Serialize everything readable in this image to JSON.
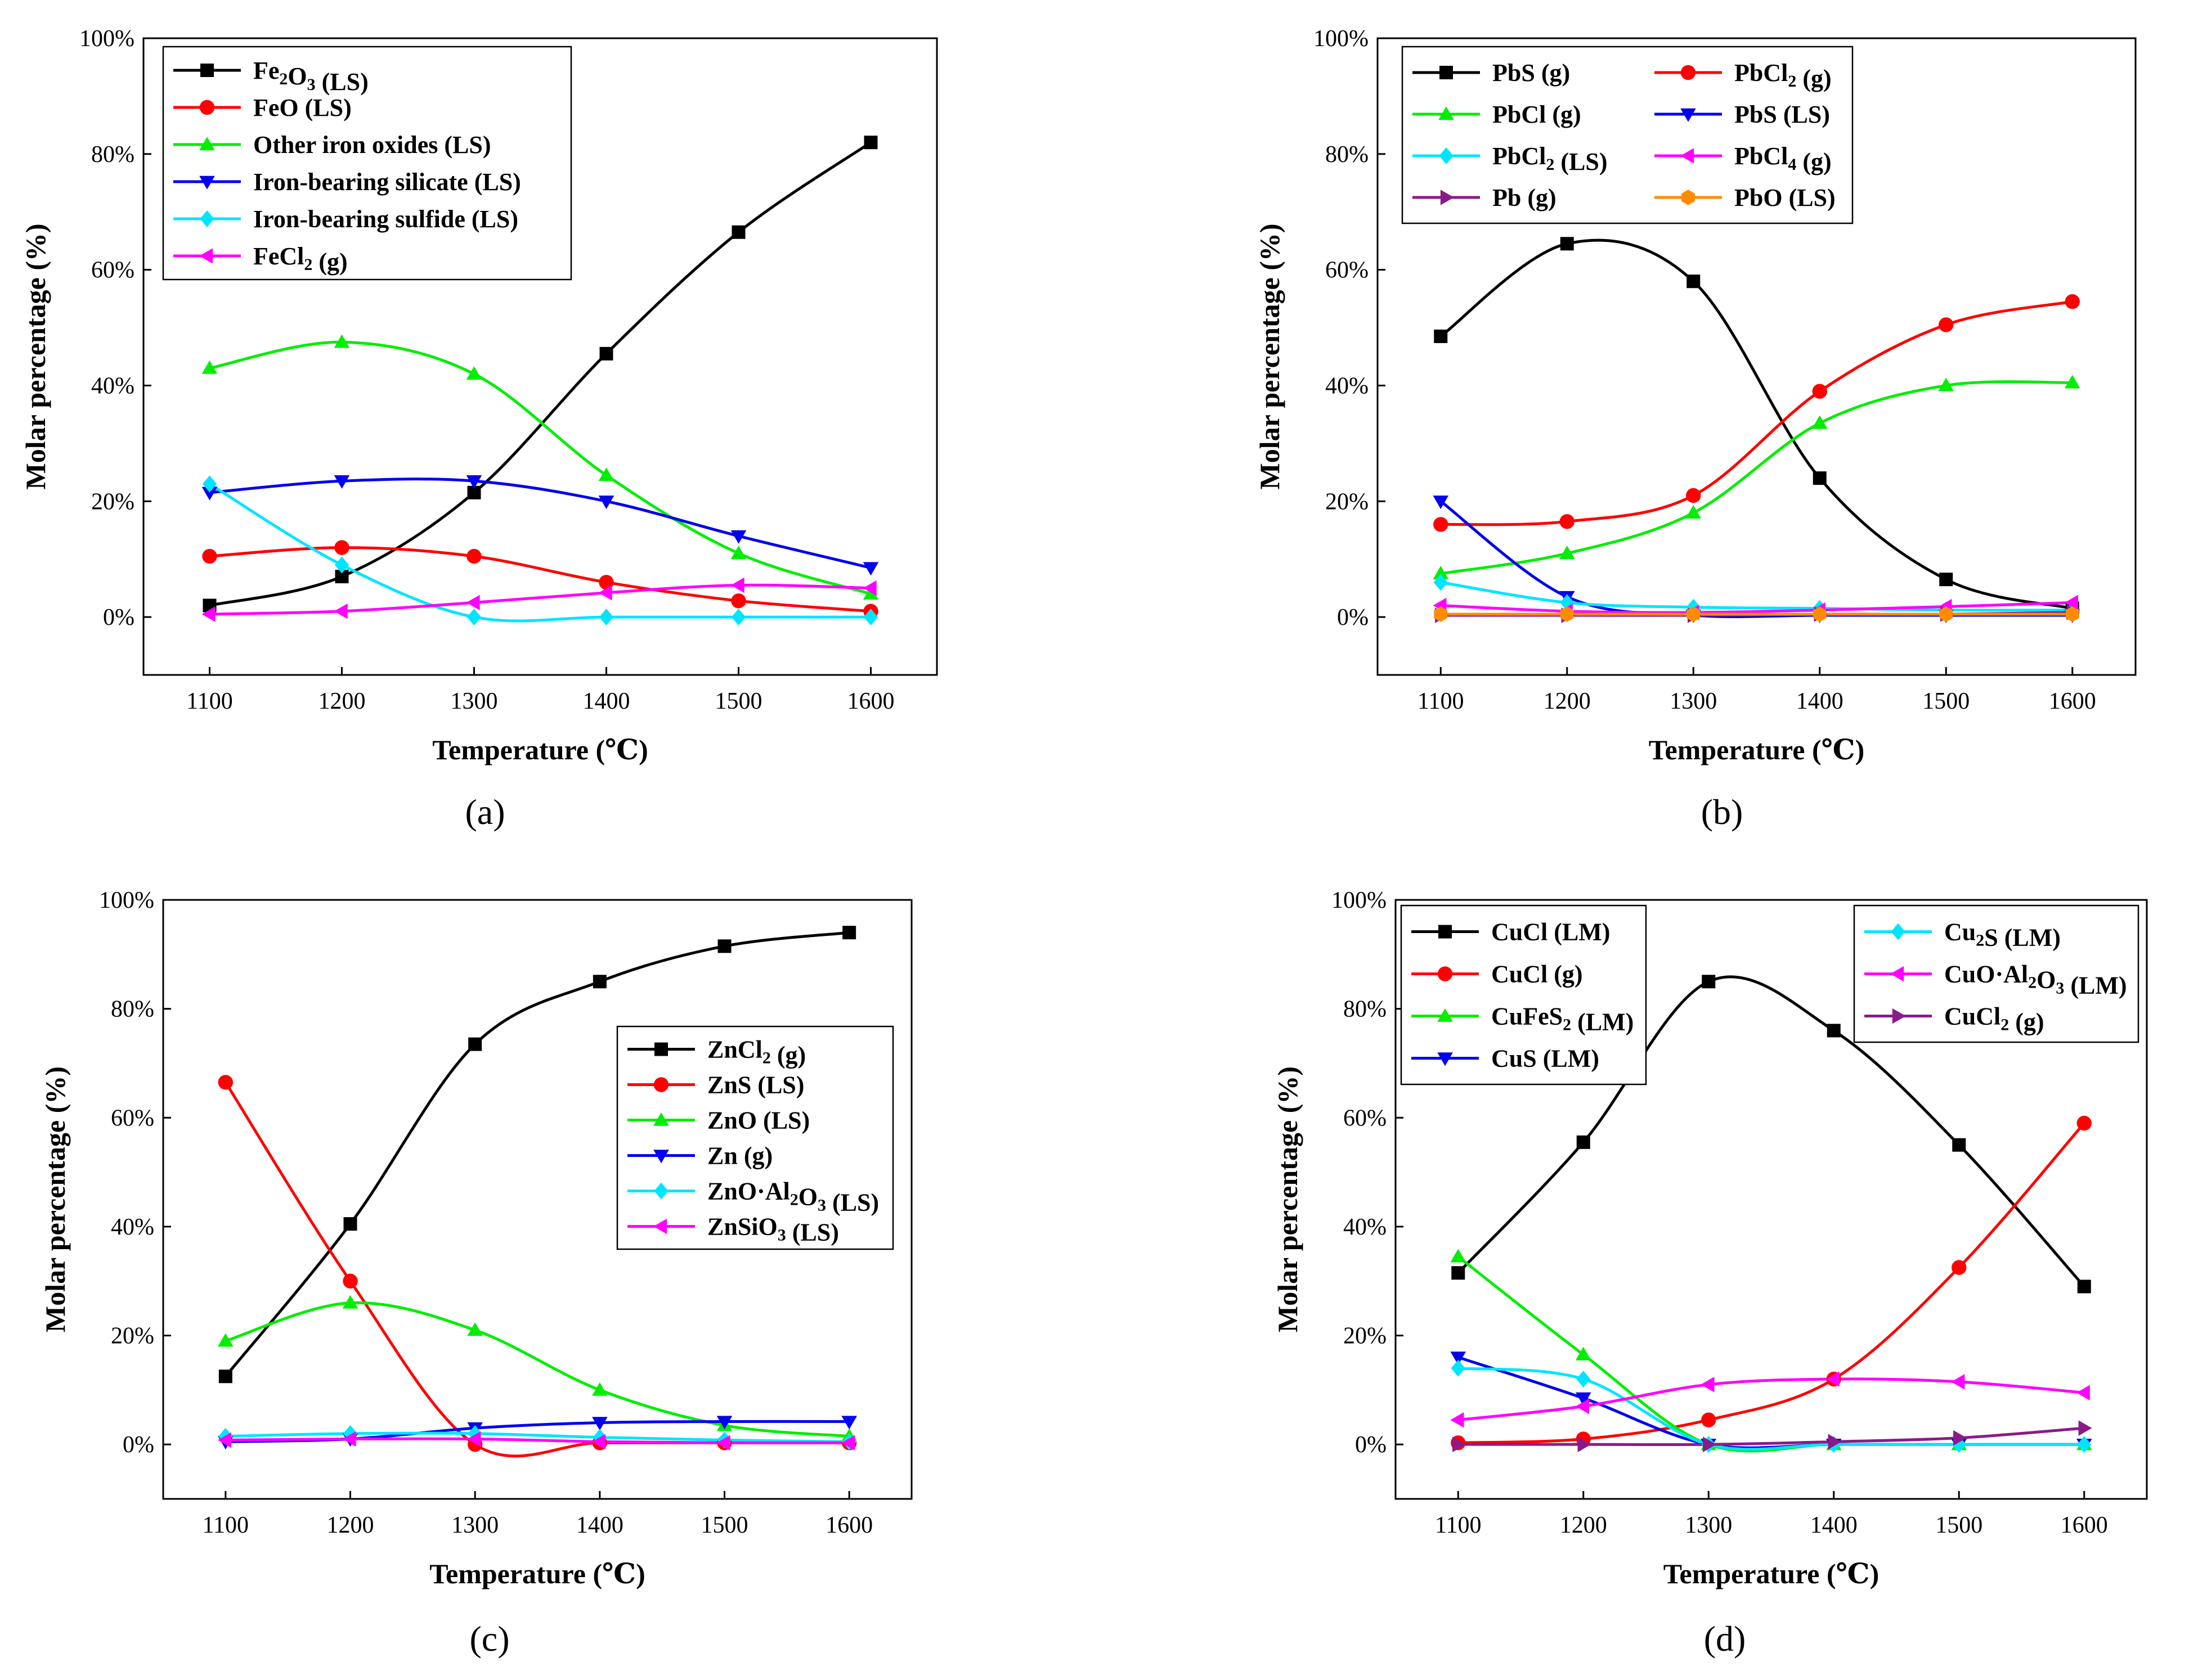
{
  "chart_data": [
    {
      "type": "line",
      "panel": "a",
      "panel_label": "(a)",
      "xlabel": "Temperature (℃)",
      "ylabel": "Molar percentage (%)",
      "x": [
        1100,
        1200,
        1300,
        1400,
        1500,
        1600
      ],
      "x_ticks": [
        "1100",
        "1200",
        "1300",
        "1400",
        "1500",
        "1600"
      ],
      "y_ticks": [
        "0%",
        "20%",
        "40%",
        "60%",
        "80%",
        "100%"
      ],
      "xlim": [
        1050,
        1650
      ],
      "ylim": [
        -10,
        100
      ],
      "legend_position": "top-left",
      "series": [
        {
          "name": "Fe2O3 (LS)",
          "label_parts": [
            [
              "Fe",
              "n"
            ],
            [
              "2",
              "sub"
            ],
            [
              "O",
              "n"
            ],
            [
              "3",
              "sub"
            ],
            [
              " (LS)",
              "n"
            ]
          ],
          "color": "#000000",
          "marker": "square",
          "values": [
            2,
            7,
            21.5,
            45.5,
            66.5,
            82
          ]
        },
        {
          "name": "FeO (LS)",
          "label_parts": [
            [
              "FeO (LS)",
              "n"
            ]
          ],
          "color": "#ff0000",
          "marker": "circle",
          "values": [
            10.5,
            12,
            10.5,
            6,
            2.8,
            1
          ]
        },
        {
          "name": "Other iron oxides (LS)",
          "label_parts": [
            [
              "Other iron oxides (LS)",
              "n"
            ]
          ],
          "color": "#00ee00",
          "marker": "triangle-up",
          "values": [
            43,
            47.5,
            42,
            24.5,
            11,
            4
          ]
        },
        {
          "name": "Iron-bearing silicate (LS)",
          "label_parts": [
            [
              "Iron-bearing silicate (LS)",
              "n"
            ]
          ],
          "color": "#0000ee",
          "marker": "triangle-down",
          "values": [
            21.5,
            23.5,
            23.5,
            20,
            14,
            8.5
          ]
        },
        {
          "name": "Iron-bearing sulfide (LS)",
          "label_parts": [
            [
              "Iron-bearing sulfide (LS)",
              "n"
            ]
          ],
          "color": "#00e5ff",
          "marker": "diamond",
          "values": [
            23,
            9,
            0,
            0,
            0,
            0
          ]
        },
        {
          "name": "FeCl2 (g)",
          "label_parts": [
            [
              "FeCl",
              "n"
            ],
            [
              "2",
              "sub"
            ],
            [
              " (g)",
              "n"
            ]
          ],
          "color": "#ff00ff",
          "marker": "triangle-left",
          "values": [
            0.5,
            1,
            2.5,
            4.2,
            5.5,
            5
          ]
        }
      ]
    },
    {
      "type": "line",
      "panel": "b",
      "panel_label": "(b)",
      "xlabel": "Temperature (℃)",
      "ylabel": "Molar percentage (%)",
      "x": [
        1100,
        1200,
        1300,
        1400,
        1500,
        1600
      ],
      "x_ticks": [
        "1100",
        "1200",
        "1300",
        "1400",
        "1500",
        "1600"
      ],
      "y_ticks": [
        "0%",
        "20%",
        "40%",
        "60%",
        "80%",
        "100%"
      ],
      "xlim": [
        1050,
        1650
      ],
      "ylim": [
        -10,
        100
      ],
      "legend_position": "top-left",
      "series": [
        {
          "name": "PbS (g)",
          "label_parts": [
            [
              "PbS (g)",
              "n"
            ]
          ],
          "color": "#000000",
          "marker": "square",
          "values": [
            48.5,
            64.5,
            58,
            24,
            6.5,
            1.5
          ]
        },
        {
          "name": "PbCl2 (g)",
          "label_parts": [
            [
              "PbCl",
              "n"
            ],
            [
              "2",
              "sub"
            ],
            [
              " (g)",
              "n"
            ]
          ],
          "color": "#ff0000",
          "marker": "circle",
          "values": [
            16,
            16.5,
            21,
            39,
            50.5,
            54.5
          ]
        },
        {
          "name": "PbCl (g)",
          "label_parts": [
            [
              "PbCl (g)",
              "n"
            ]
          ],
          "color": "#00ee00",
          "marker": "triangle-up",
          "values": [
            7.5,
            11,
            18,
            33.5,
            40,
            40.5
          ]
        },
        {
          "name": "PbS (LS)",
          "label_parts": [
            [
              "PbS (LS)",
              "n"
            ]
          ],
          "color": "#0000ee",
          "marker": "triangle-down",
          "values": [
            20,
            3.5,
            0.3,
            0.3,
            0.3,
            0.3
          ]
        },
        {
          "name": "PbCl2 (LS)",
          "label_parts": [
            [
              "PbCl",
              "n"
            ],
            [
              "2",
              "sub"
            ],
            [
              " (LS)",
              "n"
            ]
          ],
          "color": "#00e5ff",
          "marker": "diamond",
          "values": [
            6,
            2.5,
            1.7,
            1.5,
            1.2,
            1.2
          ]
        },
        {
          "name": "PbCl4 (g)",
          "label_parts": [
            [
              "PbCl",
              "n"
            ],
            [
              "4",
              "sub"
            ],
            [
              " (g)",
              "n"
            ]
          ],
          "color": "#ff00ff",
          "marker": "triangle-left",
          "values": [
            2,
            1,
            0.8,
            1.2,
            1.8,
            2.5
          ]
        },
        {
          "name": "Pb (g)",
          "label_parts": [
            [
              "Pb (g)",
              "n"
            ]
          ],
          "color": "#8b1a89",
          "marker": "triangle-right",
          "values": [
            0.3,
            0.3,
            0.3,
            0.5,
            0.5,
            0.8
          ]
        },
        {
          "name": "PbO (LS)",
          "label_parts": [
            [
              "PbO (LS)",
              "n"
            ]
          ],
          "color": "#ff8c00",
          "marker": "hexagon",
          "values": [
            0.5,
            0.5,
            0.5,
            0.5,
            0.5,
            0.5
          ]
        }
      ]
    },
    {
      "type": "line",
      "panel": "c",
      "panel_label": "(c)",
      "xlabel": "Temperature (℃)",
      "ylabel": "Molar percentage (%)",
      "x": [
        1100,
        1200,
        1300,
        1400,
        1500,
        1600
      ],
      "x_ticks": [
        "1100",
        "1200",
        "1300",
        "1400",
        "1500",
        "1600"
      ],
      "y_ticks": [
        "0%",
        "20%",
        "40%",
        "60%",
        "80%",
        "100%"
      ],
      "xlim": [
        1050,
        1650
      ],
      "ylim": [
        -10,
        100
      ],
      "legend_position": "center-right",
      "series": [
        {
          "name": "ZnCl2 (g)",
          "label_parts": [
            [
              "ZnCl",
              "n"
            ],
            [
              "2",
              "sub"
            ],
            [
              " (g)",
              "n"
            ]
          ],
          "color": "#000000",
          "marker": "square",
          "values": [
            12.5,
            40.5,
            73.5,
            85,
            91.5,
            94
          ]
        },
        {
          "name": "ZnS (LS)",
          "label_parts": [
            [
              "ZnS (LS)",
              "n"
            ]
          ],
          "color": "#ff0000",
          "marker": "circle",
          "values": [
            66.5,
            30,
            0,
            0.3,
            0.3,
            0.3
          ]
        },
        {
          "name": "ZnO (LS)",
          "label_parts": [
            [
              "ZnO (LS)",
              "n"
            ]
          ],
          "color": "#00ee00",
          "marker": "triangle-up",
          "values": [
            19,
            26,
            21,
            10,
            3.5,
            1.5
          ]
        },
        {
          "name": "Zn (g)",
          "label_parts": [
            [
              "Zn (g)",
              "n"
            ]
          ],
          "color": "#0000ee",
          "marker": "triangle-down",
          "values": [
            0.5,
            1,
            3,
            4,
            4.2,
            4.2
          ]
        },
        {
          "name": "ZnO·Al2O3 (LS)",
          "label_parts": [
            [
              "ZnO·Al",
              "n"
            ],
            [
              "2",
              "sub"
            ],
            [
              "O",
              "n"
            ],
            [
              "3",
              "sub"
            ],
            [
              " (LS)",
              "n"
            ]
          ],
          "color": "#00e5ff",
          "marker": "diamond",
          "values": [
            1.5,
            2,
            2,
            1.3,
            0.8,
            0.5
          ]
        },
        {
          "name": "ZnSiO3 (LS)",
          "label_parts": [
            [
              "ZnSiO",
              "n"
            ],
            [
              "3",
              "sub"
            ],
            [
              " (LS)",
              "n"
            ]
          ],
          "color": "#ff00ff",
          "marker": "triangle-left",
          "values": [
            0.8,
            1,
            1,
            0.5,
            0.3,
            0.3
          ]
        }
      ]
    },
    {
      "type": "line",
      "panel": "d",
      "panel_label": "(d)",
      "xlabel": "Temperature (℃)",
      "ylabel": "Molar percentage (%)",
      "x": [
        1100,
        1200,
        1300,
        1400,
        1500,
        1600
      ],
      "x_ticks": [
        "1100",
        "1200",
        "1300",
        "1400",
        "1500",
        "1600"
      ],
      "y_ticks": [
        "0%",
        "20%",
        "40%",
        "60%",
        "80%",
        "100%"
      ],
      "xlim": [
        1050,
        1650
      ],
      "ylim": [
        -10,
        100
      ],
      "legend_position": "top-left and top-right",
      "series": [
        {
          "name": "CuCl (LM)",
          "label_parts": [
            [
              "CuCl (LM)",
              "n"
            ]
          ],
          "color": "#000000",
          "marker": "square",
          "legend": 0,
          "values": [
            31.5,
            55.5,
            85,
            76,
            55,
            29
          ]
        },
        {
          "name": "CuCl (g)",
          "label_parts": [
            [
              "CuCl (g)",
              "n"
            ]
          ],
          "color": "#ff0000",
          "marker": "circle",
          "legend": 0,
          "values": [
            0.3,
            1,
            4.5,
            12,
            32.5,
            59
          ]
        },
        {
          "name": "CuFeS2 (LM)",
          "label_parts": [
            [
              "CuFeS",
              "n"
            ],
            [
              "2",
              "sub"
            ],
            [
              " (LM)",
              "n"
            ]
          ],
          "color": "#00ee00",
          "marker": "triangle-up",
          "legend": 0,
          "values": [
            34.5,
            16.5,
            0,
            0,
            0,
            0
          ]
        },
        {
          "name": "CuS (LM)",
          "label_parts": [
            [
              "CuS (LM)",
              "n"
            ]
          ],
          "color": "#0000ee",
          "marker": "triangle-down",
          "legend": 0,
          "values": [
            16,
            8.5,
            0,
            0,
            0,
            0
          ]
        },
        {
          "name": "Cu2S (LM)",
          "label_parts": [
            [
              "Cu",
              "n"
            ],
            [
              "2",
              "sub"
            ],
            [
              "S (LM)",
              "n"
            ]
          ],
          "color": "#00e5ff",
          "marker": "diamond",
          "legend": 1,
          "values": [
            14,
            12,
            0,
            0,
            0,
            0
          ]
        },
        {
          "name": "CuO·Al2O3 (LM)",
          "label_parts": [
            [
              "CuO·Al",
              "n"
            ],
            [
              "2",
              "sub"
            ],
            [
              "O",
              "n"
            ],
            [
              "3",
              "sub"
            ],
            [
              " (LM)",
              "n"
            ]
          ],
          "color": "#ff00ff",
          "marker": "triangle-left",
          "legend": 1,
          "values": [
            4.5,
            7,
            11,
            12,
            11.5,
            9.5
          ]
        },
        {
          "name": "CuCl2 (g)",
          "label_parts": [
            [
              "CuCl",
              "n"
            ],
            [
              "2",
              "sub"
            ],
            [
              " (g)",
              "n"
            ]
          ],
          "color": "#8b1a89",
          "marker": "triangle-right",
          "legend": 1,
          "values": [
            0,
            0,
            0,
            0.5,
            1.2,
            3
          ]
        }
      ]
    }
  ]
}
